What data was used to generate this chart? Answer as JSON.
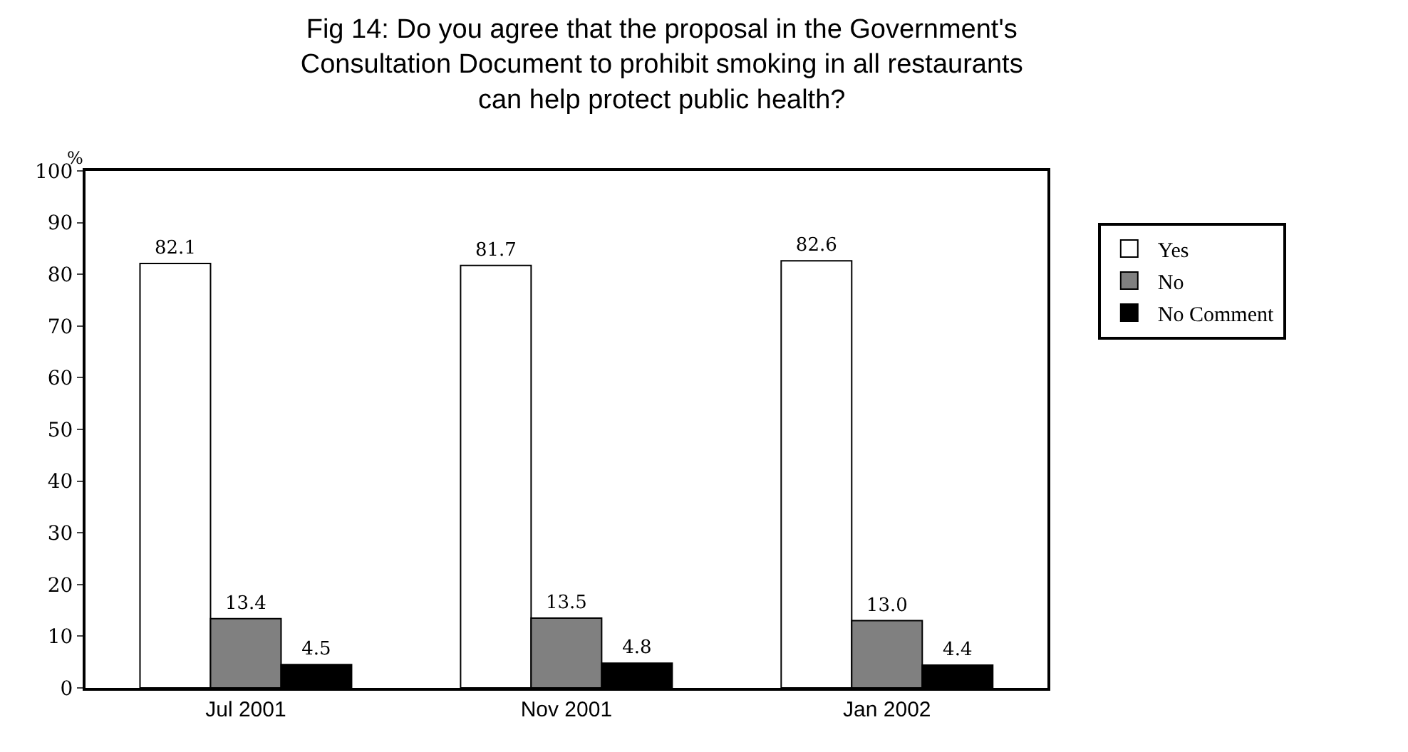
{
  "chart_data": {
    "type": "bar",
    "title": "Fig 14: Do you agree that the proposal in the Government's Consultation Document to prohibit smoking in all restaurants can help protect public health?",
    "ylabel": "%",
    "categories": [
      "Jul 2001",
      "Nov 2001",
      "Jan 2002"
    ],
    "series": [
      {
        "name": "Yes",
        "color": "#ffffff",
        "values": [
          82.1,
          81.7,
          82.6
        ],
        "value_labels": [
          "82.1",
          "81.7",
          "82.6"
        ]
      },
      {
        "name": "No",
        "color": "#808080",
        "values": [
          13.4,
          13.5,
          13.0
        ],
        "value_labels": [
          "13.4",
          "13.5",
          "13.0"
        ]
      },
      {
        "name": "No Comment",
        "color": "#000000",
        "values": [
          4.5,
          4.8,
          4.4
        ],
        "value_labels": [
          "4.5",
          "4.8",
          "4.4"
        ]
      }
    ],
    "ylim": [
      0,
      100
    ],
    "yticks": [
      0,
      10,
      20,
      30,
      40,
      50,
      60,
      70,
      80,
      90,
      100
    ],
    "legend": "right"
  }
}
